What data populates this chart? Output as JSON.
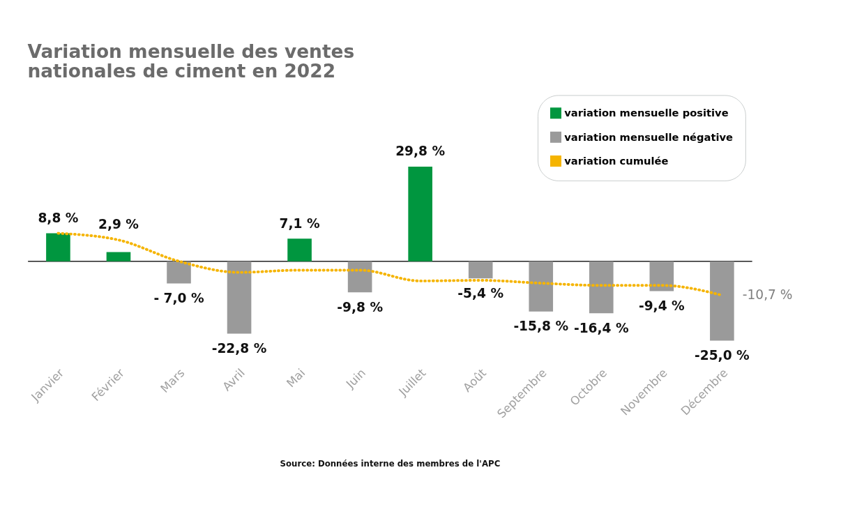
{
  "chart_data": {
    "type": "bar",
    "title": "Variation mensuelle des ventes nationales de ciment en 2022",
    "categories": [
      "Janvier",
      "Février",
      "Mars",
      "Avril",
      "Mai",
      "Juin",
      "Juillet",
      "Août",
      "Septembre",
      "Octobre",
      "Novembre",
      "Décembre"
    ],
    "series": [
      {
        "name": "variation mensuelle positive",
        "color": "#00963f",
        "values": [
          8.8,
          2.9,
          null,
          null,
          7.1,
          null,
          29.8,
          null,
          null,
          null,
          null,
          null
        ],
        "value_labels": [
          "8,8 %",
          "2,9 %",
          null,
          null,
          "7,1 %",
          null,
          "29,8 %",
          null,
          null,
          null,
          null,
          null
        ]
      },
      {
        "name": "variation mensuelle négative",
        "color": "#9a9a9a",
        "values": [
          null,
          null,
          -7.0,
          -22.8,
          null,
          -9.8,
          null,
          -5.4,
          -15.8,
          -16.4,
          -9.4,
          -25.0
        ],
        "value_labels": [
          null,
          null,
          "- 7,0 %",
          "-22,8 %",
          null,
          "-9,8 %",
          null,
          "-5,4 %",
          "-15,8 %",
          "-16,4 %",
          "-9,4 %",
          "-25,0 %"
        ]
      },
      {
        "name": "variation cumulée",
        "type": "line",
        "color": "#f5b400",
        "line_style": "dotted",
        "marker": "none",
        "values": [
          8.8,
          6.7,
          0.0,
          -3.5,
          -2.8,
          -2.8,
          -6.2,
          -6.0,
          -6.9,
          -7.6,
          -7.6,
          -10.7
        ],
        "value_labels": [
          null,
          null,
          null,
          null,
          null,
          null,
          null,
          null,
          null,
          null,
          null,
          "-10,7 %"
        ]
      }
    ],
    "legend": "top right",
    "grid": false,
    "annotations": [
      "Source: Données interne des membres de l'APC"
    ]
  }
}
